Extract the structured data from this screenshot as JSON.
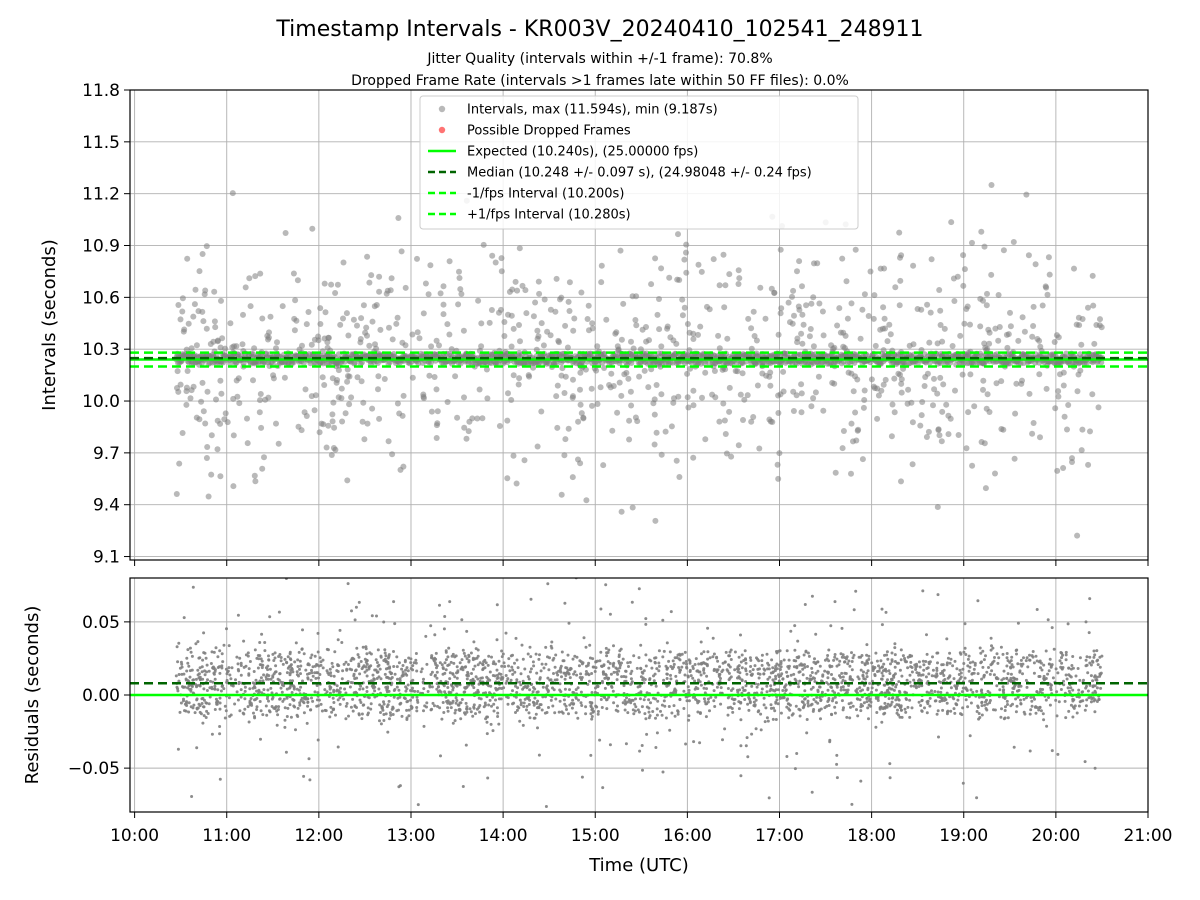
{
  "chart_data": {
    "title": "Timestamp Intervals - KR003V_20240410_102541_248911",
    "subtitles": [
      "Jitter Quality (intervals within +/-1 frame): 70.8%",
      "Dropped Frame Rate (intervals >1 frames late within 50 FF files): 0.0%"
    ],
    "xlabel": "Time (UTC)",
    "x_ticks": [
      "10:00",
      "11:00",
      "12:00",
      "13:00",
      "14:00",
      "15:00",
      "16:00",
      "17:00",
      "18:00",
      "19:00",
      "20:00",
      "21:00"
    ],
    "xlim_hours": [
      9.95,
      21.0
    ],
    "data_span_hours": [
      10.45,
      20.5
    ],
    "colors": {
      "intervals": "#808080",
      "dropped": "#ff0000",
      "expected": "#00ff00",
      "median": "#006400",
      "fps_bounds": "#00ff00",
      "grid": "#b0b0b0"
    },
    "panels": [
      {
        "type": "scatter",
        "ylabel": "Intervals (seconds)",
        "ylim": [
          9.08,
          11.8
        ],
        "y_ticks": [
          "9.1",
          "9.4",
          "9.7",
          "10.0",
          "10.3",
          "10.6",
          "10.9",
          "11.2",
          "11.5",
          "11.8"
        ],
        "lines": {
          "expected": 10.24,
          "median": 10.248,
          "minus_fps": 10.2,
          "plus_fps": 10.28
        },
        "legend": {
          "placement": "top-center",
          "entries": [
            "Intervals, max (11.594s), min (9.187s)",
            "Possible Dropped Frames",
            "Expected (10.240s), (25.00000 fps)",
            "Median (10.248 +/- 0.097 s), (24.98048 +/- 0.24 fps)",
            "-1/fps Interval (10.200s)",
            "+1/fps Interval (10.280s)"
          ]
        },
        "max_interval": 11.594,
        "min_interval": 9.187,
        "dropped_frames": []
      },
      {
        "type": "scatter",
        "ylabel": "Residuals (seconds)",
        "ylim": [
          -0.08,
          0.08
        ],
        "y_ticks": [
          "−0.05",
          "0.00",
          "0.05"
        ],
        "lines": {
          "zero": 0.0,
          "median": 0.008
        }
      }
    ]
  }
}
